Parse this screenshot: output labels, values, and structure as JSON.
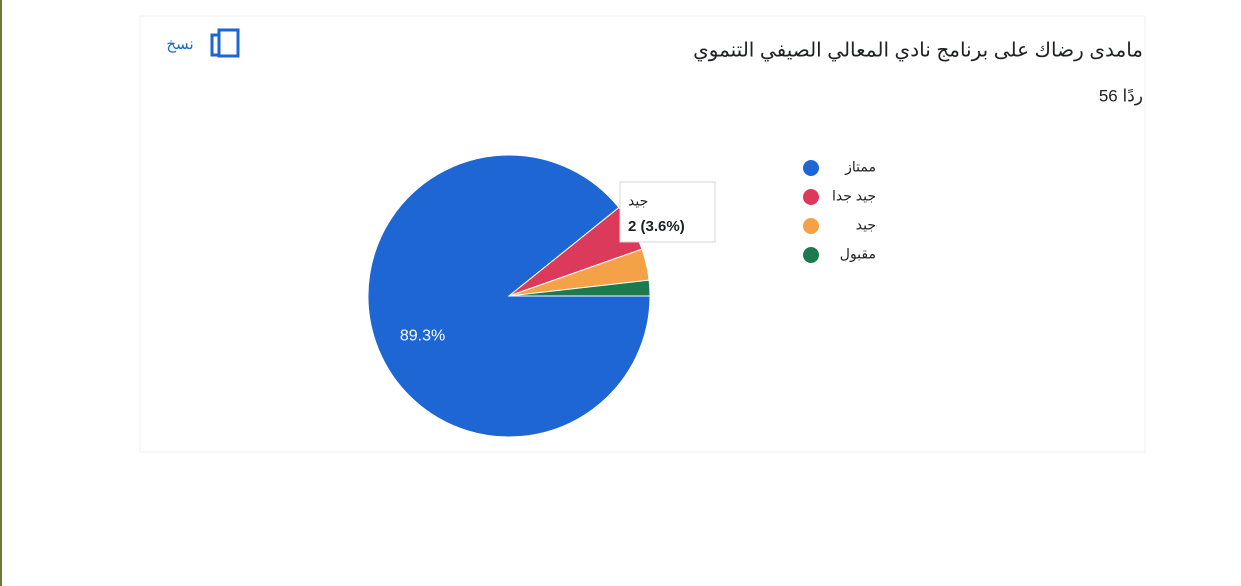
{
  "chart_data": {
    "type": "pie",
    "title": "مامدى رضاك على برنامج نادي المعالي الصيفي التنموي",
    "subtitle": "56 ردًا",
    "copy_label": "نسخ",
    "categories": [
      "ممتاز",
      "جيد جدا",
      "جيد",
      "مقبول"
    ],
    "values": [
      89.3,
      5.4,
      3.6,
      1.8
    ],
    "value_labels": [
      "89.3%",
      null,
      null,
      null
    ],
    "colors": [
      "#1d66d3",
      "#dc3a5a",
      "#f4a147",
      "#1d7a4f"
    ],
    "tooltip": {
      "category": "جيد",
      "text": "2 (3.6%)"
    }
  }
}
